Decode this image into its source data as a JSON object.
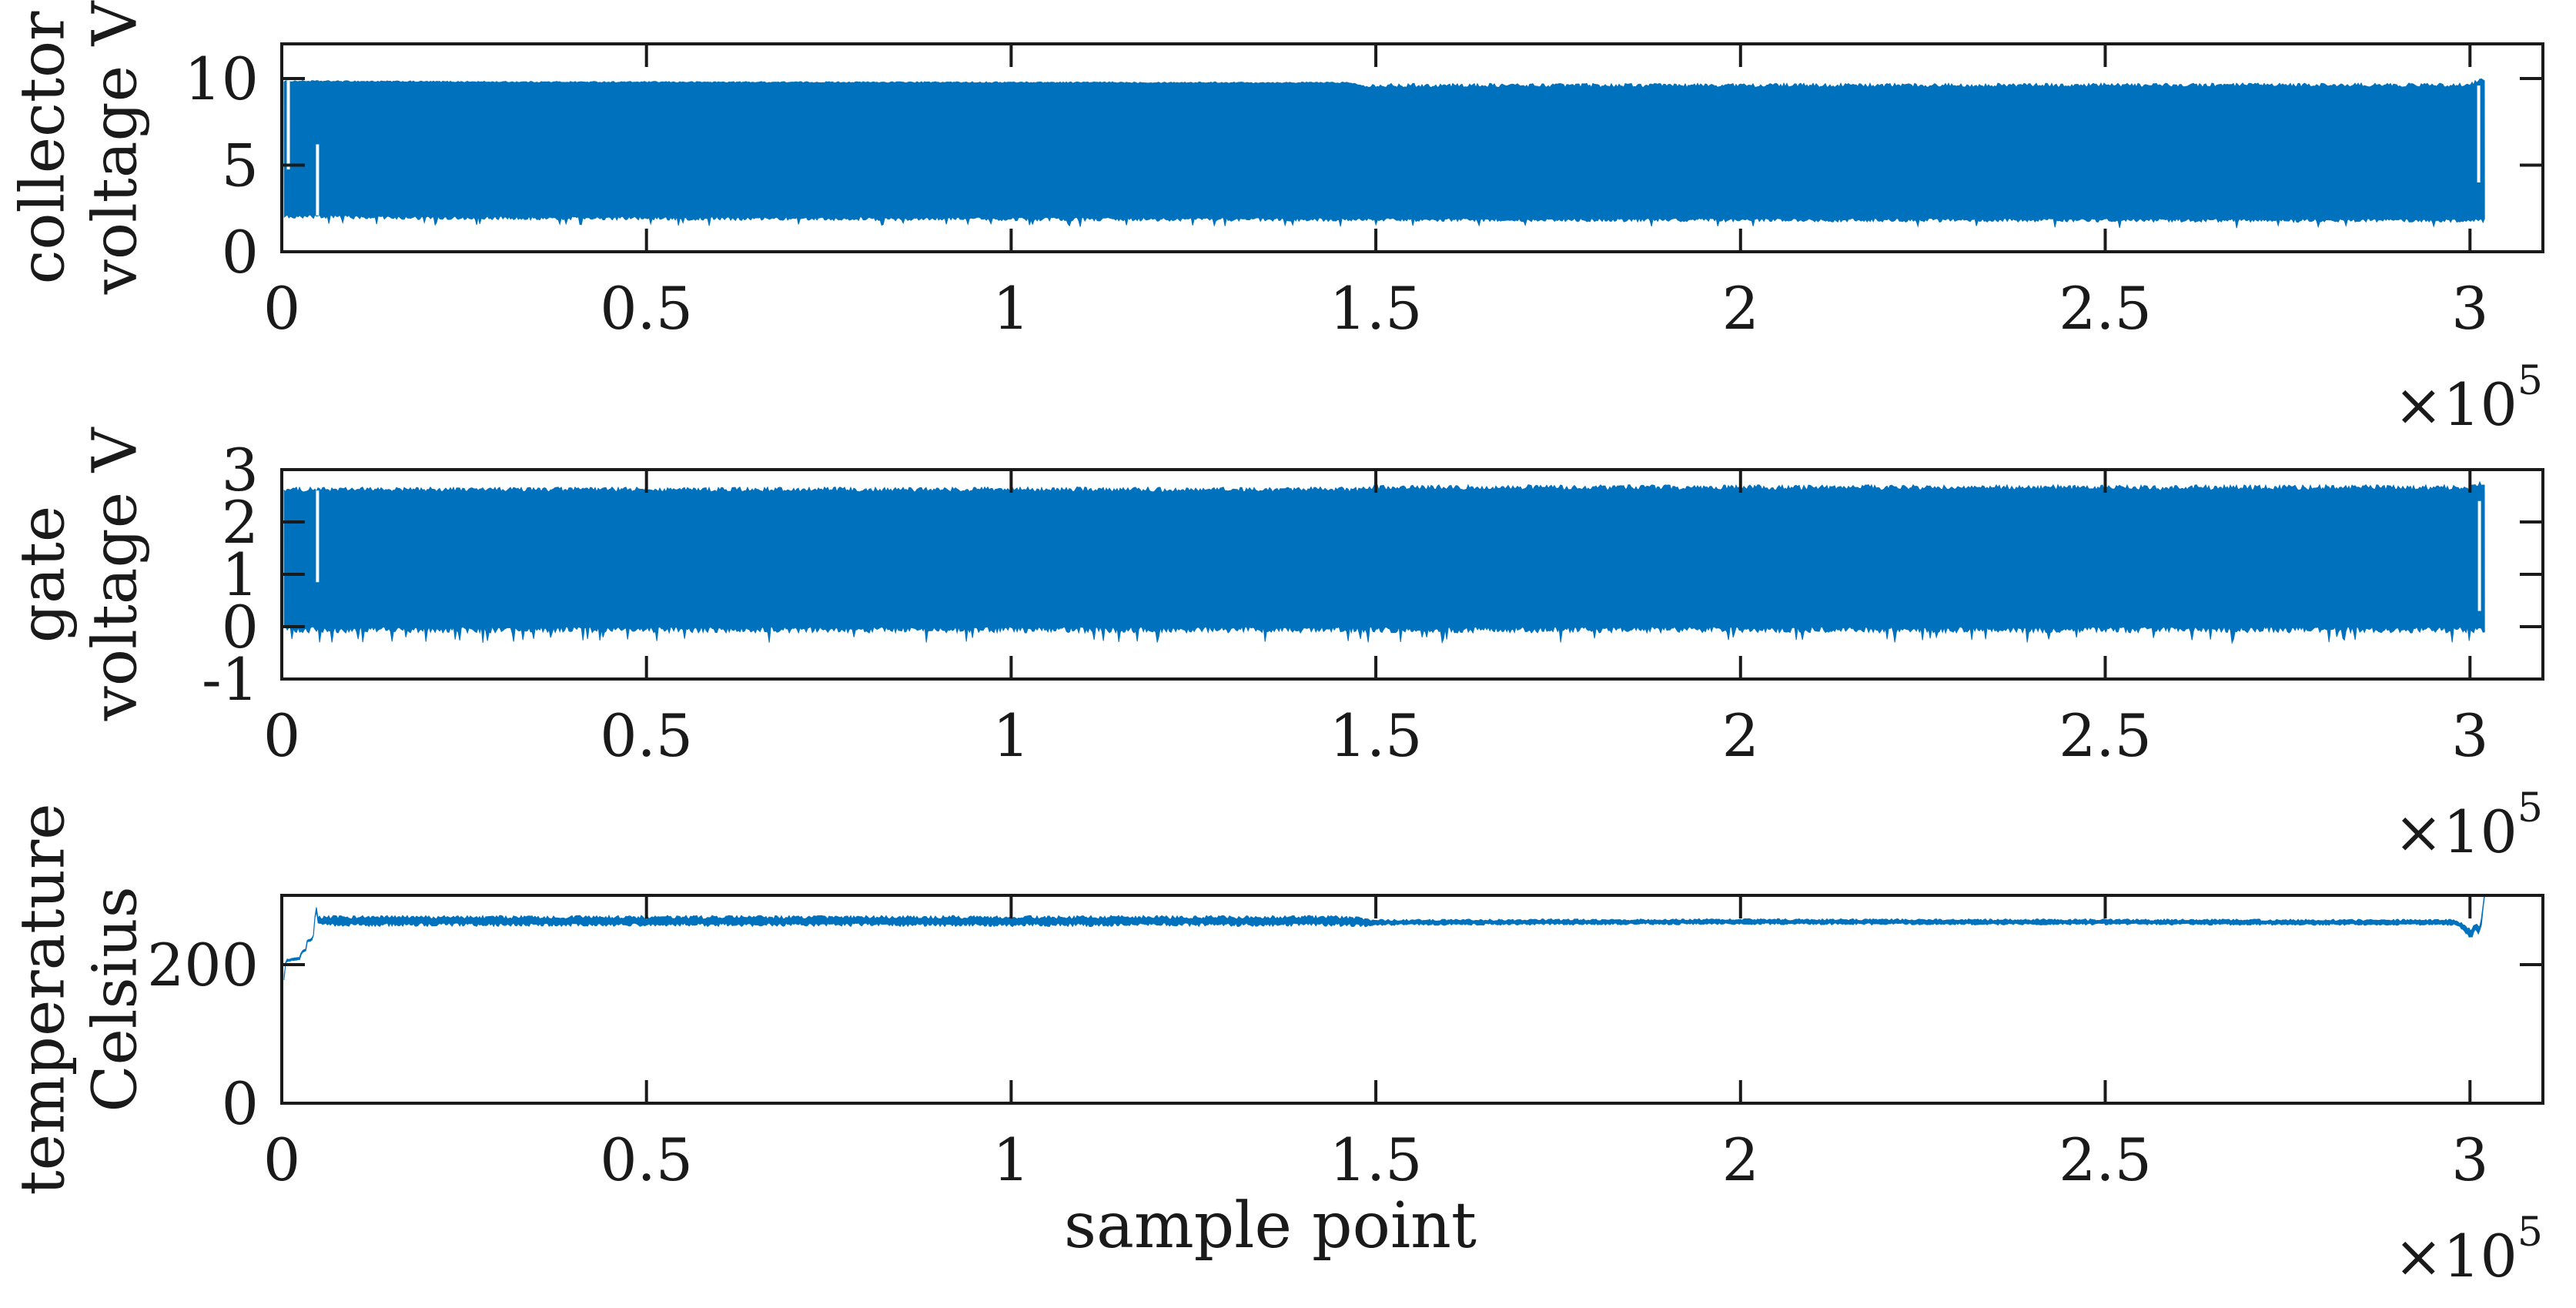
{
  "figure": {
    "background": "#ffffff",
    "axis_color": "#1a1a1a",
    "line_color": "#0072BD",
    "xlabel": "sample point",
    "x_multiplier": {
      "prefix": "×10",
      "exponent": "5"
    }
  },
  "chart_data": [
    {
      "id": "collector-voltage",
      "type": "line",
      "ylabel_lines": [
        "collector",
        "voltage V"
      ],
      "xlabel": "",
      "grid": false,
      "xlim": [
        0,
        310000
      ],
      "ylim": [
        0,
        12
      ],
      "xticks": [
        0,
        50000,
        100000,
        150000,
        200000,
        250000,
        300000
      ],
      "xtick_labels": [
        "0",
        "0.5",
        "1",
        "1.5",
        "2",
        "2.5",
        "3"
      ],
      "yticks": [
        0,
        5,
        10
      ],
      "ytick_labels": [
        "0",
        "5",
        "10"
      ],
      "signal": {
        "kind": "band",
        "description": "dense PWM oscillation filling envelope between bottom and top rails",
        "x_start": 0,
        "x_end": 302000,
        "top_envelope": [
          [
            0,
            9.85
          ],
          [
            30000,
            9.8
          ],
          [
            146000,
            9.76
          ],
          [
            148500,
            9.6
          ],
          [
            298000,
            9.62
          ],
          [
            300500,
            9.7
          ],
          [
            301500,
            10.0
          ],
          [
            302000,
            9.9
          ]
        ],
        "bottom_envelope": [
          [
            0,
            2.05
          ],
          [
            20000,
            1.95
          ],
          [
            150000,
            1.85
          ],
          [
            302000,
            1.8
          ]
        ],
        "top_noise": [
          [
            0,
            0.04
          ],
          [
            147000,
            0.04
          ],
          [
            149000,
            0.12
          ],
          [
            302000,
            0.12
          ]
        ],
        "bottom_noise": 0.22,
        "dropouts": [
          {
            "x": 900,
            "y_from": 4.75,
            "y_to": 9.9
          },
          {
            "x": 4900,
            "y_from": 2.1,
            "y_to": 6.2
          },
          {
            "x": 301200,
            "y_from": 4.0,
            "y_to": 9.6
          }
        ]
      }
    },
    {
      "id": "gate-voltage",
      "type": "line",
      "ylabel_lines": [
        "gate",
        "voltage V"
      ],
      "xlabel": "",
      "grid": false,
      "xlim": [
        0,
        310000
      ],
      "ylim": [
        -1,
        3
      ],
      "xticks": [
        0,
        50000,
        100000,
        150000,
        200000,
        250000,
        300000
      ],
      "xtick_labels": [
        "0",
        "0.5",
        "1",
        "1.5",
        "2",
        "2.5",
        "3"
      ],
      "yticks": [
        -1,
        0,
        1,
        2,
        3
      ],
      "ytick_labels": [
        "-1",
        "0",
        "1",
        "2",
        "3"
      ],
      "signal": {
        "kind": "band",
        "description": "gate drive square-wave band between off level ~0 V and on level ~2.65 V",
        "x_start": 0,
        "x_end": 302000,
        "top_envelope": [
          [
            0,
            2.62
          ],
          [
            148000,
            2.62
          ],
          [
            150000,
            2.66
          ],
          [
            300800,
            2.66
          ],
          [
            301600,
            2.75
          ],
          [
            302000,
            2.7
          ]
        ],
        "bottom_envelope": [
          [
            0,
            -0.06
          ],
          [
            302000,
            -0.06
          ]
        ],
        "top_noise": [
          [
            0,
            0.045
          ],
          [
            302000,
            0.055
          ]
        ],
        "bottom_noise": 0.12,
        "dropouts": [
          {
            "x": 4900,
            "y_from": 0.85,
            "y_to": 2.6
          },
          {
            "x": 301300,
            "y_from": 0.3,
            "y_to": 2.4
          }
        ]
      }
    },
    {
      "id": "temperature",
      "type": "line",
      "ylabel_lines": [
        "temperature",
        "Celsius"
      ],
      "xlabel": "sample point",
      "grid": false,
      "xlim": [
        0,
        310000
      ],
      "ylim": [
        0,
        300
      ],
      "xticks": [
        0,
        50000,
        100000,
        150000,
        200000,
        250000,
        300000
      ],
      "xtick_labels": [
        "0",
        "0.5",
        "1",
        "1.5",
        "2",
        "2.5",
        "3"
      ],
      "yticks": [
        0,
        200
      ],
      "ytick_labels": [
        "0",
        "200"
      ],
      "signal": {
        "kind": "noisy_line",
        "description": "temperature ramps up in steps from ~15 C to ~265 C, steady with noise, noise drops after 1.47e5, end ringing and final spike to ~300 C",
        "points": [
          [
            0,
            15
          ],
          [
            350,
            193
          ],
          [
            600,
            206
          ],
          [
            2500,
            209
          ],
          [
            2700,
            218
          ],
          [
            3300,
            221
          ],
          [
            3500,
            234
          ],
          [
            4300,
            237
          ],
          [
            4500,
            263
          ],
          [
            4700,
            284
          ],
          [
            4950,
            263
          ],
          [
            8000,
            263
          ],
          [
            145000,
            263
          ],
          [
            148500,
            261
          ],
          [
            200000,
            262
          ],
          [
            298000,
            261
          ],
          [
            299300,
            253
          ],
          [
            300200,
            243
          ],
          [
            300800,
            256
          ],
          [
            301200,
            247
          ],
          [
            301600,
            262
          ],
          [
            301900,
            297
          ],
          [
            302000,
            300
          ]
        ],
        "noise_amp": [
          [
            0,
            2
          ],
          [
            4500,
            2
          ],
          [
            5200,
            8
          ],
          [
            147500,
            8
          ],
          [
            149500,
            4.5
          ],
          [
            298500,
            4.5
          ],
          [
            299500,
            7
          ],
          [
            301500,
            7
          ],
          [
            302000,
            3
          ]
        ]
      }
    }
  ]
}
